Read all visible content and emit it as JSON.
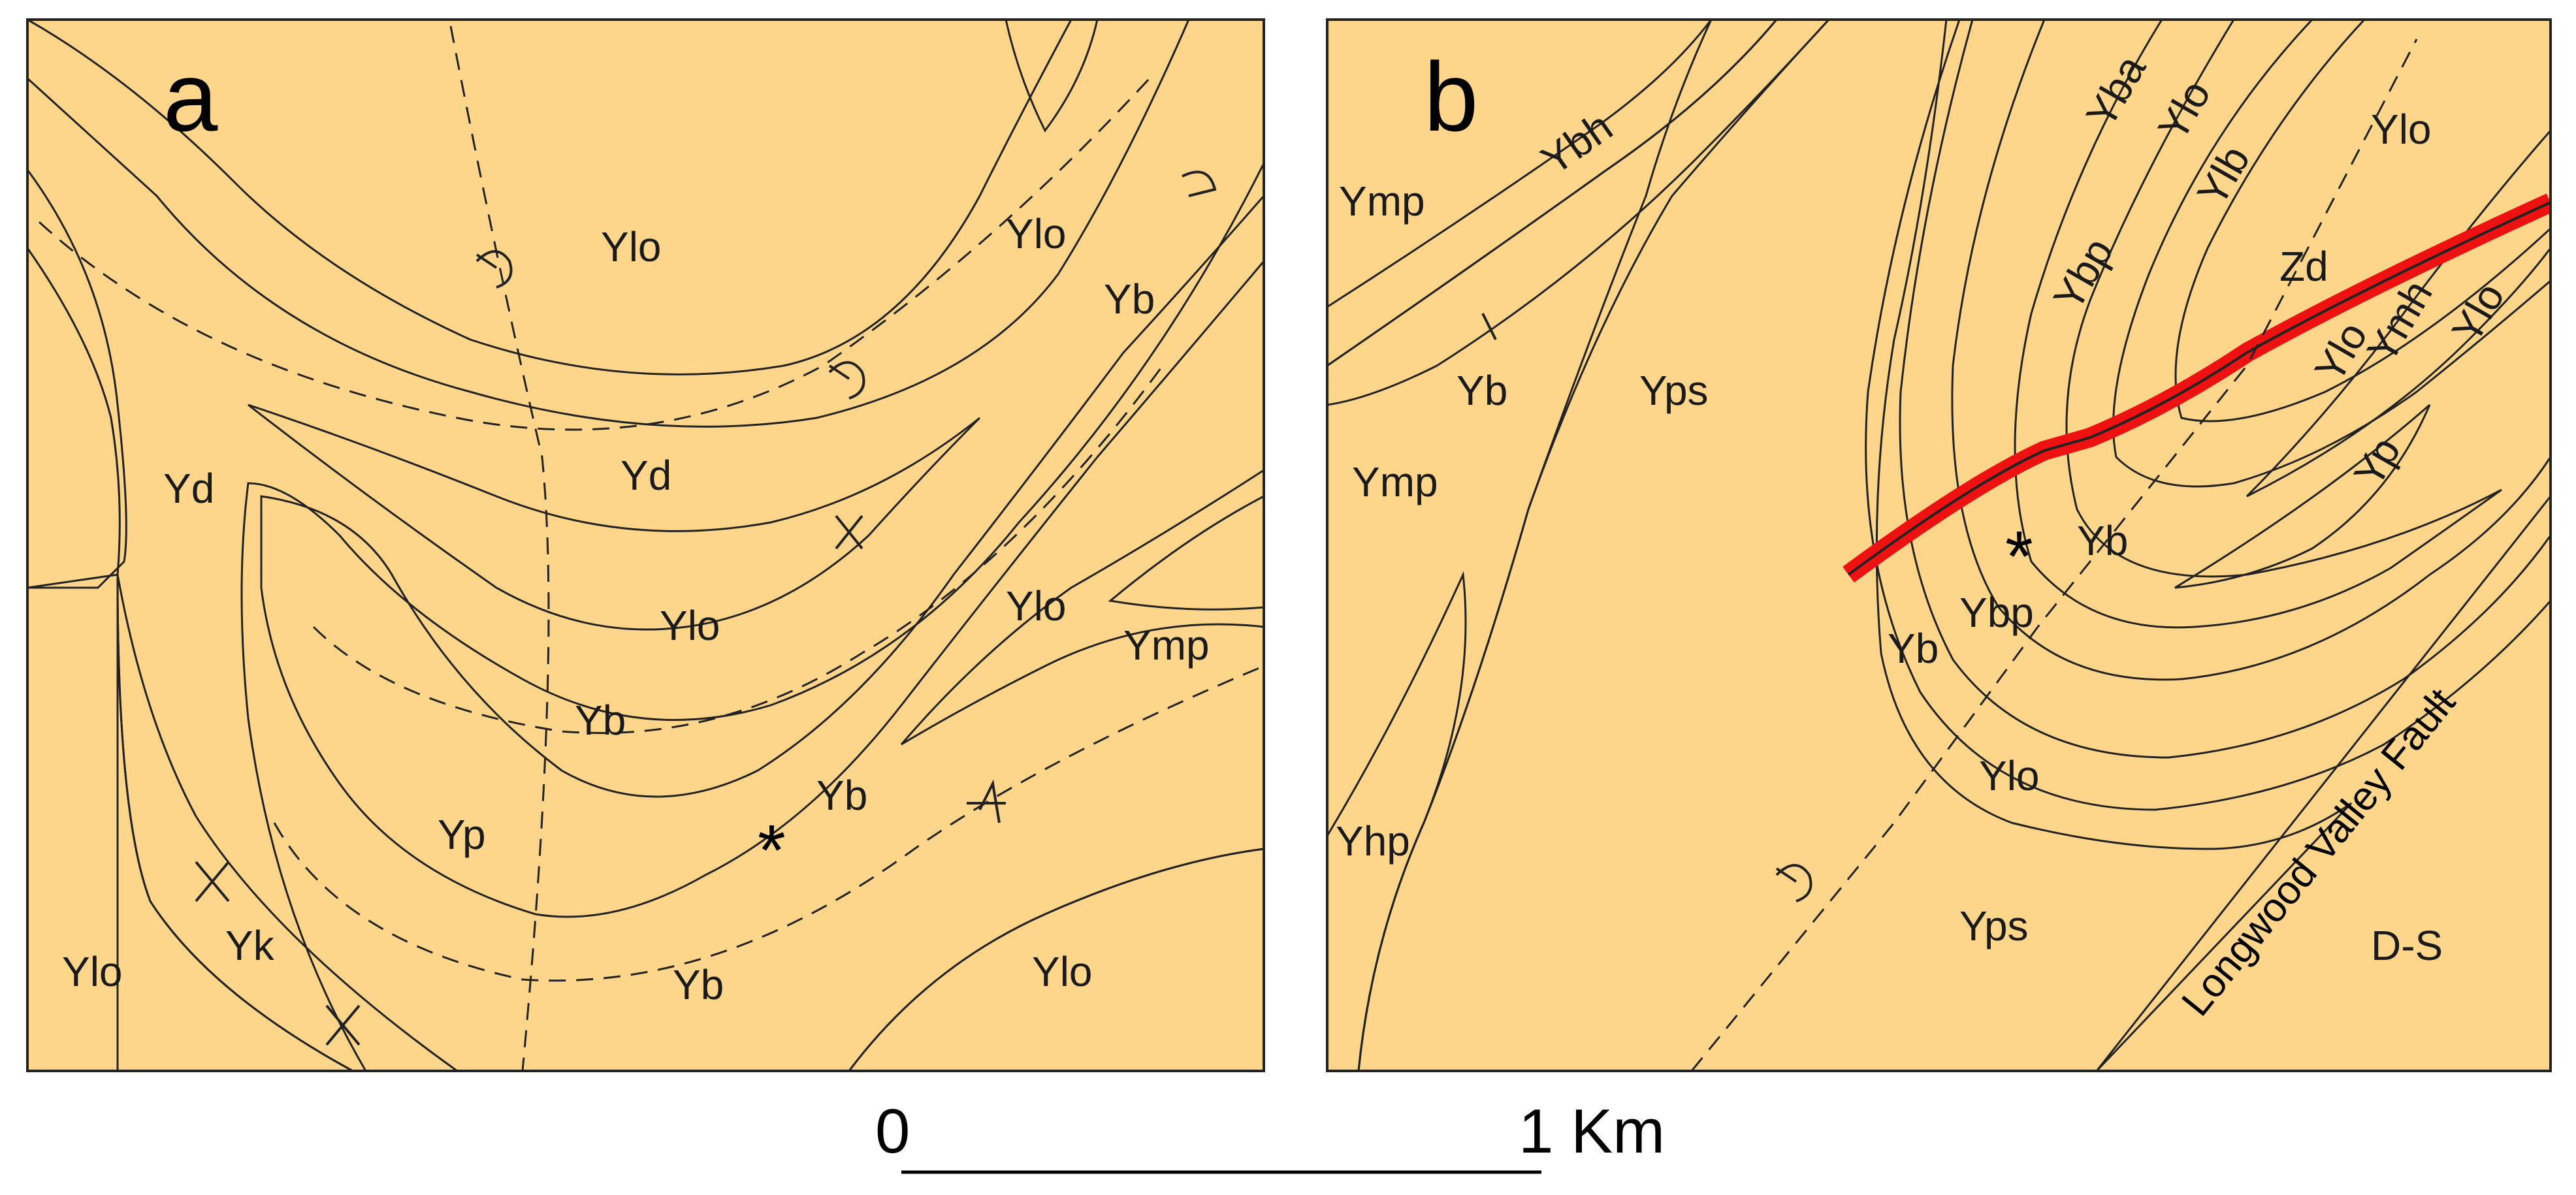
{
  "panels": {
    "a": {
      "label": "a",
      "units": {
        "ylo_top": "Ylo",
        "ylo_mid": "Ylo",
        "ylo_inner": "Ylo",
        "ylo_right": "Ylo",
        "ylo_left": "Ylo",
        "ylo_bottom_right": "Ylo",
        "yd_left": "Yd",
        "yd_mid": "Yd",
        "yb_right": "Yb",
        "yb_mid": "Yb",
        "yb_star": "Yb",
        "yb_bottom": "Yb",
        "yp": "Yp",
        "ymp": "Ymp",
        "yk": "Yk"
      },
      "star": "*"
    },
    "b": {
      "label": "b",
      "units": {
        "ymp_top": "Ymp",
        "ybh": "Ybh",
        "yb_left": "Yb",
        "ymp_mid": "Ymp",
        "yhp": "Yhp",
        "yps_top": "Yps",
        "yps_bottom": "Yps",
        "yba": "Yba",
        "ylo_a": "Ylo",
        "ylb": "Ylb",
        "ylo_b": "Ylo",
        "ybp_top": "Ybp",
        "zd": "Zd",
        "ylo_c": "Ylo",
        "ymh": "Ymh",
        "ylo_d": "Ylo",
        "yp": "Yp",
        "yb_star": "Yb",
        "yb_nose": "Yb",
        "ybp_nose": "Ybp",
        "ylo_nose": "Ylo",
        "ds": "D-S"
      },
      "star": "*",
      "fault_label": "Longwood Valley Fault"
    }
  },
  "scale_bar": {
    "start": "0",
    "end": "1 Km"
  },
  "colors": {
    "Ylo": "#fdd68c",
    "Yd": "#fbc25e",
    "Yb": "#e6b3f5",
    "Yp": "#f57aaa",
    "Ymp": "#f3f350",
    "Yk": "#3ee84f",
    "Yhp": "#21e883",
    "Yps": "#99cdf7",
    "Ybh": "#f99b2c",
    "Ybp": "#c7f26b",
    "Yba": "#f1f37c",
    "Ylb": "#e3c8a3",
    "Ymh": "#c8a88a",
    "fault": "#ee1111",
    "D-S": "#ffffff"
  }
}
